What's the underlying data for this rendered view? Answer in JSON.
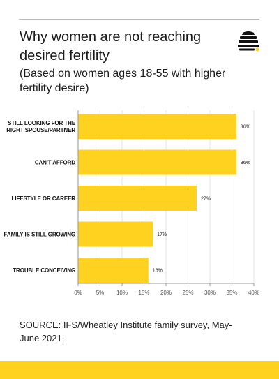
{
  "title": "Why women are not reaching desired fertility",
  "subtitle": "(Based on women ages 18-55 with higher fertility desire)",
  "source": "SOURCE: IFS/Wheatley Institute family survey, May-June 2021.",
  "logo_icon": "beehive-icon",
  "colors": {
    "bar": "#FFD21F",
    "accent_band": "#FFD21F",
    "logo": "#111111",
    "logo_dot": "#FFD21F",
    "gridline": "#dddddd",
    "axis": "#999999"
  },
  "chart_data": {
    "type": "bar",
    "orientation": "horizontal",
    "categories": [
      [
        "STILL LOOKING FOR THE",
        "RIGHT SPOUSE/PARTNER"
      ],
      [
        "CAN'T AFFORD"
      ],
      [
        "LIFESTYLE OR CAREER"
      ],
      [
        "FAMILY IS STILL GROWING"
      ],
      [
        "TROUBLE CONCEIVING"
      ]
    ],
    "values": [
      36,
      36,
      27,
      17,
      16
    ],
    "value_labels": [
      "36%",
      "36%",
      "27%",
      "17%",
      "16%"
    ],
    "xlim": [
      0,
      40
    ],
    "ticks": [
      0,
      5,
      10,
      15,
      20,
      25,
      30,
      35,
      40
    ],
    "tick_labels": [
      "0%",
      "5%",
      "10%",
      "15%",
      "20%",
      "25%",
      "30%",
      "35%",
      "40%"
    ],
    "grid": true,
    "legend": "none"
  }
}
